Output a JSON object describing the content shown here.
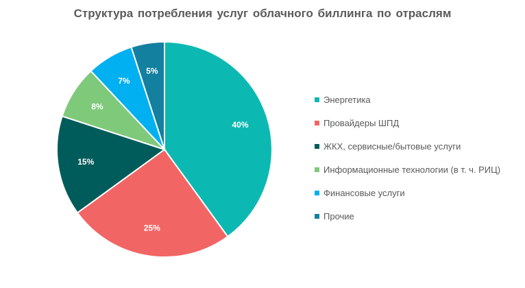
{
  "chart_data": {
    "type": "pie",
    "title": "Структура потребления  услуг облачного биллинга по отраслям",
    "slices": [
      {
        "label": "Энергетика",
        "value": 40,
        "display": "40%",
        "color": "#0cb9b2"
      },
      {
        "label": "Провайдеры ШПД",
        "value": 25,
        "display": "25%",
        "color": "#f26565"
      },
      {
        "label": "ЖКХ, сервисные/бытовые  услуги",
        "value": 15,
        "display": "15%",
        "color": "#005c5a"
      },
      {
        "label": "Информационные  технологии  (в т. ч. РИЦ)",
        "value": 8,
        "display": "8%",
        "color": "#7fc97b"
      },
      {
        "label": "Финансовые  услуги",
        "value": 7,
        "display": "7%",
        "color": "#00b0f0"
      },
      {
        "label": "Прочие",
        "value": 5,
        "display": "5%",
        "color": "#1380a0"
      }
    ],
    "legend_position": "right"
  }
}
